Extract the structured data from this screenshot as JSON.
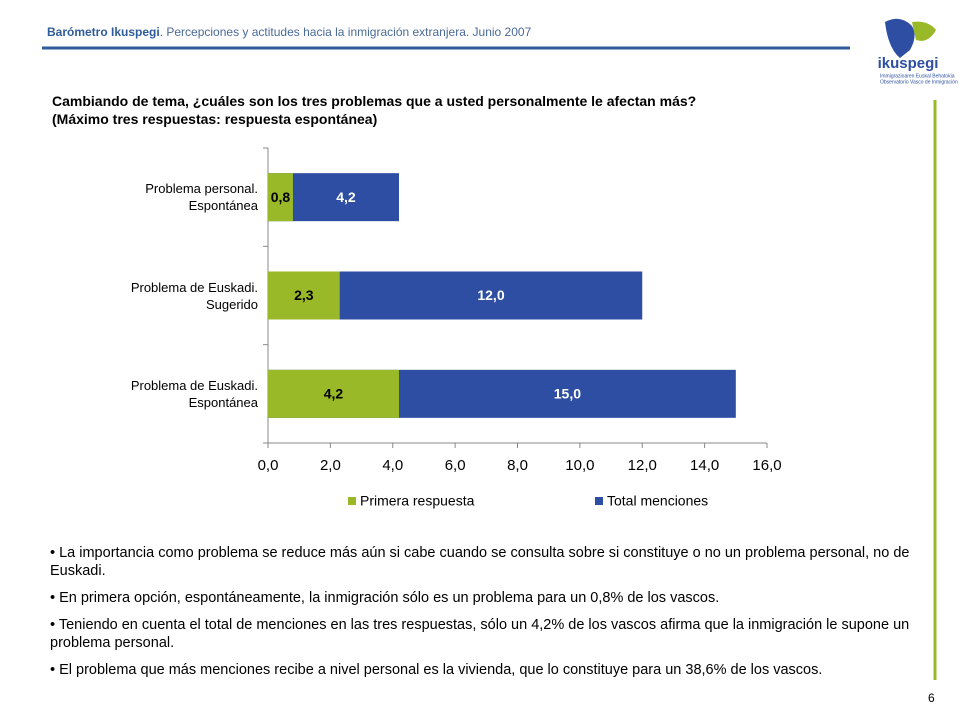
{
  "header": {
    "brand": "Barómetro Ikuspegi",
    "subtitle": ". Percepciones y actitudes hacia la inmigración extranjera. Junio 2007"
  },
  "logo": {
    "name": "ikuspegi",
    "line1": "Immigrazioaren Euskal Behatokia",
    "line2": "Observatorio Vasco de Inmigración"
  },
  "chart_data": {
    "type": "bar",
    "orientation": "horizontal",
    "barmode": "overlay",
    "title": "Cambiando de tema, ¿cuáles son los tres problemas que a usted personalmente le afectan más?",
    "subtitle": "(Máximo tres respuestas: respuesta espontánea)",
    "categories": [
      "Problema personal.\nEspontánea",
      "Problema de Euskadi.\nSugerido",
      "Problema de Euskadi.\nEspontánea"
    ],
    "series": [
      {
        "name": "Primera respuesta",
        "color": "#99b928",
        "values": [
          0.8,
          2.3,
          4.2
        ],
        "value_labels": [
          "0,8",
          "2,3",
          "4,2"
        ]
      },
      {
        "name": "Total menciones",
        "color": "#2d4ea2",
        "values": [
          4.2,
          12.0,
          15.0
        ],
        "value_labels": [
          "4,2",
          "12,0",
          "15,0"
        ]
      }
    ],
    "xlim": [
      0,
      16
    ],
    "xticks": [
      {
        "value": 0,
        "label": "0,0"
      },
      {
        "value": 2,
        "label": "2,0"
      },
      {
        "value": 4,
        "label": "4,0"
      },
      {
        "value": 6,
        "label": "6,0"
      },
      {
        "value": 8,
        "label": "8,0"
      },
      {
        "value": 10,
        "label": "10,0"
      },
      {
        "value": 12,
        "label": "12,0"
      },
      {
        "value": 14,
        "label": "14,0"
      },
      {
        "value": 16,
        "label": "16,0"
      }
    ],
    "legend": "bottom"
  },
  "bullets": [
    "• La importancia como problema se reduce más aún si cabe cuando se consulta sobre si constituye o no un problema personal, no de Euskadi.",
    "• En primera opción, espontáneamente, la inmigración sólo es un problema para un 0,8% de los vascos.",
    "• Teniendo en cuenta el total de menciones en las tres respuestas, sólo un 4,2% de los vascos afirma que la inmigración le supone un problema personal.",
    "• El problema que más menciones recibe a nivel personal es la vivienda, que lo constituye para un 38,6% de los vascos."
  ],
  "page_number": "6"
}
